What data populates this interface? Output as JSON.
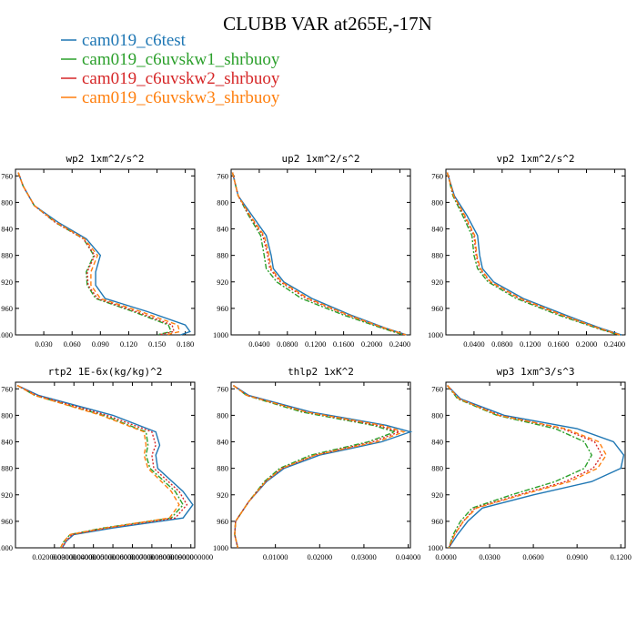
{
  "title": "CLUBB VAR at265E,-17N",
  "legend": [
    {
      "label": "cam019_c6test",
      "color": "#1f77b4"
    },
    {
      "label": "cam019_c6uvskw1_shrbuoy",
      "color": "#2ca02c"
    },
    {
      "label": "cam019_c6uvskw2_shrbuoy",
      "color": "#d62728"
    },
    {
      "label": "cam019_c6uvskw3_shrbuoy",
      "color": "#ff7f0e"
    }
  ],
  "chart_data": [
    {
      "type": "line",
      "title": "wp2  1xm^2/s^2",
      "xlim": [
        0,
        0.19
      ],
      "ylim": [
        1000,
        750
      ],
      "xticks": [
        0.03,
        0.06,
        0.09,
        0.12,
        0.15,
        0.18
      ],
      "xtick_labels": [
        "0.030",
        "0.060",
        "0.090",
        "0.120",
        "0.150",
        "0.180"
      ],
      "yticks": [
        760,
        800,
        840,
        880,
        920,
        960,
        1000
      ],
      "series": [
        {
          "x": [
            0.003,
            0.008,
            0.02,
            0.045,
            0.075,
            0.09,
            0.085,
            0.085,
            0.095,
            0.14,
            0.18,
            0.185,
            0.175
          ],
          "y": [
            755,
            775,
            805,
            830,
            855,
            880,
            905,
            925,
            945,
            965,
            985,
            995,
            1000
          ]
        },
        {
          "x": [
            0.003,
            0.008,
            0.02,
            0.042,
            0.072,
            0.083,
            0.075,
            0.076,
            0.085,
            0.125,
            0.162,
            0.165,
            0.15
          ],
          "y": [
            755,
            775,
            805,
            830,
            855,
            880,
            905,
            925,
            945,
            965,
            985,
            995,
            1000
          ]
        },
        {
          "x": [
            0.003,
            0.008,
            0.02,
            0.042,
            0.072,
            0.084,
            0.076,
            0.077,
            0.087,
            0.128,
            0.166,
            0.168,
            0.152
          ],
          "y": [
            755,
            775,
            805,
            830,
            855,
            880,
            905,
            925,
            945,
            965,
            985,
            995,
            1000
          ]
        },
        {
          "x": [
            0.003,
            0.008,
            0.02,
            0.043,
            0.073,
            0.087,
            0.08,
            0.08,
            0.09,
            0.133,
            0.172,
            0.174,
            0.16
          ],
          "y": [
            755,
            775,
            805,
            830,
            855,
            880,
            905,
            925,
            945,
            965,
            985,
            995,
            1000
          ]
        }
      ]
    },
    {
      "type": "line",
      "title": "up2  1xm^2/s^2",
      "xlim": [
        0,
        0.255
      ],
      "ylim": [
        1000,
        750
      ],
      "xticks": [
        0.04,
        0.08,
        0.12,
        0.16,
        0.2,
        0.24
      ],
      "xtick_labels": [
        "0.0400",
        "0.0800",
        "0.1200",
        "0.1600",
        "0.2000",
        "0.2400"
      ],
      "yticks": [
        760,
        800,
        840,
        880,
        920,
        960,
        1000
      ],
      "series": [
        {
          "x": [
            0.002,
            0.01,
            0.03,
            0.05,
            0.057,
            0.06,
            0.075,
            0.115,
            0.17,
            0.22,
            0.25
          ],
          "y": [
            755,
            790,
            820,
            850,
            880,
            900,
            920,
            945,
            970,
            990,
            1000
          ]
        },
        {
          "x": [
            0.002,
            0.01,
            0.025,
            0.042,
            0.047,
            0.05,
            0.065,
            0.1,
            0.16,
            0.215,
            0.245
          ],
          "y": [
            755,
            790,
            820,
            850,
            880,
            900,
            920,
            945,
            970,
            990,
            1000
          ]
        },
        {
          "x": [
            0.002,
            0.01,
            0.026,
            0.045,
            0.052,
            0.055,
            0.07,
            0.107,
            0.165,
            0.218,
            0.248
          ],
          "y": [
            755,
            790,
            820,
            850,
            880,
            900,
            920,
            945,
            970,
            990,
            1000
          ]
        },
        {
          "x": [
            0.002,
            0.01,
            0.027,
            0.047,
            0.054,
            0.057,
            0.072,
            0.11,
            0.167,
            0.219,
            0.249
          ],
          "y": [
            755,
            790,
            820,
            850,
            880,
            900,
            920,
            945,
            970,
            990,
            1000
          ]
        }
      ]
    },
    {
      "type": "line",
      "title": "vp2  1xm^2/s^2",
      "xlim": [
        0,
        0.255
      ],
      "ylim": [
        1000,
        750
      ],
      "xticks": [
        0.04,
        0.08,
        0.12,
        0.16,
        0.2,
        0.24
      ],
      "xtick_labels": [
        "0.0400",
        "0.0800",
        "0.1200",
        "0.1600",
        "0.2000",
        "0.2400"
      ],
      "yticks": [
        760,
        800,
        840,
        880,
        920,
        960,
        1000
      ],
      "series": [
        {
          "x": [
            0.002,
            0.012,
            0.03,
            0.045,
            0.048,
            0.052,
            0.068,
            0.11,
            0.17,
            0.22,
            0.25
          ],
          "y": [
            755,
            790,
            820,
            850,
            880,
            900,
            920,
            945,
            970,
            990,
            1000
          ]
        },
        {
          "x": [
            0.002,
            0.01,
            0.024,
            0.037,
            0.04,
            0.045,
            0.06,
            0.1,
            0.16,
            0.215,
            0.245
          ],
          "y": [
            755,
            790,
            820,
            850,
            880,
            900,
            920,
            945,
            970,
            990,
            1000
          ]
        },
        {
          "x": [
            0.002,
            0.011,
            0.026,
            0.04,
            0.043,
            0.048,
            0.063,
            0.104,
            0.164,
            0.217,
            0.247
          ],
          "y": [
            755,
            790,
            820,
            850,
            880,
            900,
            920,
            945,
            970,
            990,
            1000
          ]
        },
        {
          "x": [
            0.002,
            0.011,
            0.027,
            0.041,
            0.044,
            0.049,
            0.064,
            0.106,
            0.166,
            0.218,
            0.248
          ],
          "y": [
            755,
            790,
            820,
            850,
            880,
            900,
            920,
            945,
            970,
            990,
            1000
          ]
        }
      ]
    },
    {
      "type": "line",
      "title": "rtp2  1E-6x(kg/kg)^2",
      "xlim": [
        0,
        0.092
      ],
      "ylim": [
        1000,
        750
      ],
      "xticks": [
        0.02,
        0.03,
        0.04,
        0.05,
        0.06,
        0.07,
        0.08,
        0.09
      ],
      "xtick_labels": [
        "0.0200000000",
        "0.0300000000",
        "0.0400000000",
        "0.0500000000",
        "0.0600000000",
        "0.0700000000",
        "0.0800000000",
        "0.0900000000"
      ],
      "yticks": [
        760,
        800,
        840,
        880,
        920,
        960,
        1000
      ],
      "series": [
        {
          "x": [
            0.001,
            0.012,
            0.05,
            0.072,
            0.074,
            0.072,
            0.073,
            0.086,
            0.091,
            0.086,
            0.05,
            0.03,
            0.026,
            0.024
          ],
          "y": [
            755,
            770,
            800,
            825,
            845,
            860,
            880,
            915,
            935,
            955,
            970,
            980,
            990,
            1000
          ]
        },
        {
          "x": [
            0.001,
            0.01,
            0.045,
            0.067,
            0.068,
            0.067,
            0.069,
            0.082,
            0.086,
            0.08,
            0.045,
            0.028,
            0.025,
            0.023
          ],
          "y": [
            755,
            770,
            800,
            825,
            845,
            860,
            880,
            915,
            935,
            955,
            970,
            980,
            990,
            1000
          ]
        },
        {
          "x": [
            0.001,
            0.011,
            0.047,
            0.07,
            0.072,
            0.07,
            0.071,
            0.084,
            0.088,
            0.082,
            0.047,
            0.029,
            0.026,
            0.024
          ],
          "y": [
            755,
            770,
            800,
            825,
            845,
            860,
            880,
            915,
            935,
            955,
            970,
            980,
            990,
            1000
          ]
        },
        {
          "x": [
            0.001,
            0.01,
            0.044,
            0.066,
            0.067,
            0.066,
            0.068,
            0.08,
            0.084,
            0.079,
            0.046,
            0.028,
            0.025,
            0.023
          ],
          "y": [
            755,
            770,
            800,
            825,
            845,
            860,
            880,
            915,
            935,
            955,
            970,
            980,
            990,
            1000
          ]
        }
      ]
    },
    {
      "type": "line",
      "title": "thlp2  1xK^2",
      "xlim": [
        0,
        0.0405
      ],
      "ylim": [
        1000,
        750
      ],
      "xticks": [
        0.01,
        0.02,
        0.03,
        0.04
      ],
      "xtick_labels": [
        "0.01000",
        "0.02000",
        "0.03000",
        "0.04000"
      ],
      "yticks": [
        760,
        800,
        840,
        880,
        920,
        960,
        1000
      ],
      "series": [
        {
          "x": [
            0.0005,
            0.004,
            0.018,
            0.035,
            0.0405,
            0.034,
            0.02,
            0.012,
            0.008,
            0.004,
            0.001,
            0.0008,
            0.0015
          ],
          "y": [
            755,
            770,
            795,
            815,
            825,
            840,
            860,
            880,
            900,
            930,
            960,
            980,
            1000
          ]
        },
        {
          "x": [
            0.0005,
            0.0035,
            0.016,
            0.032,
            0.037,
            0.031,
            0.018,
            0.011,
            0.0075,
            0.004,
            0.001,
            0.0008,
            0.0015
          ],
          "y": [
            755,
            770,
            795,
            815,
            825,
            840,
            860,
            880,
            900,
            930,
            960,
            980,
            1000
          ]
        },
        {
          "x": [
            0.0005,
            0.0037,
            0.017,
            0.033,
            0.038,
            0.032,
            0.019,
            0.0115,
            0.0078,
            0.004,
            0.001,
            0.0008,
            0.0015
          ],
          "y": [
            755,
            770,
            795,
            815,
            825,
            840,
            860,
            880,
            900,
            930,
            960,
            980,
            1000
          ]
        },
        {
          "x": [
            0.0005,
            0.0036,
            0.017,
            0.034,
            0.039,
            0.033,
            0.019,
            0.0115,
            0.0078,
            0.004,
            0.001,
            0.0008,
            0.0015
          ],
          "y": [
            755,
            770,
            795,
            815,
            825,
            840,
            860,
            880,
            900,
            930,
            960,
            980,
            1000
          ]
        }
      ]
    },
    {
      "type": "line",
      "title": "wp3  1xm^3/s^3",
      "xlim": [
        0,
        0.123
      ],
      "ylim": [
        1000,
        750
      ],
      "xticks": [
        0.0,
        0.03,
        0.06,
        0.09,
        0.12
      ],
      "xtick_labels": [
        "0.0000",
        "0.0300",
        "0.0600",
        "0.0900",
        "0.1200"
      ],
      "yticks": [
        760,
        800,
        840,
        880,
        920,
        960,
        1000
      ],
      "series": [
        {
          "x": [
            0.001,
            0.01,
            0.04,
            0.09,
            0.115,
            0.122,
            0.12,
            0.1,
            0.06,
            0.025,
            0.015,
            0.008,
            0.002
          ],
          "y": [
            755,
            775,
            800,
            820,
            840,
            860,
            880,
            900,
            920,
            940,
            960,
            980,
            1000
          ]
        },
        {
          "x": [
            0.001,
            0.008,
            0.035,
            0.075,
            0.095,
            0.1,
            0.095,
            0.075,
            0.045,
            0.018,
            0.01,
            0.005,
            0.002
          ],
          "y": [
            755,
            775,
            800,
            820,
            840,
            860,
            880,
            900,
            920,
            940,
            960,
            980,
            1000
          ]
        },
        {
          "x": [
            0.001,
            0.009,
            0.037,
            0.08,
            0.102,
            0.107,
            0.101,
            0.082,
            0.05,
            0.02,
            0.012,
            0.006,
            0.002
          ],
          "y": [
            755,
            775,
            800,
            820,
            840,
            860,
            880,
            900,
            920,
            940,
            960,
            980,
            1000
          ]
        },
        {
          "x": [
            0.001,
            0.009,
            0.036,
            0.082,
            0.105,
            0.11,
            0.104,
            0.085,
            0.052,
            0.021,
            0.012,
            0.006,
            0.002
          ],
          "y": [
            755,
            775,
            800,
            820,
            840,
            860,
            880,
            900,
            920,
            940,
            960,
            980,
            1000
          ]
        }
      ]
    }
  ]
}
